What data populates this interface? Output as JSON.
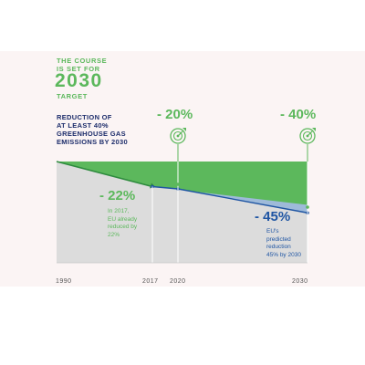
{
  "colors": {
    "green": "#5cb85c",
    "navy": "#1d2d6b",
    "blue": "#1f55a3",
    "grey_area": "#dcdcdc",
    "light_blue": "#9ebad9",
    "background": "#fbf4f4"
  },
  "headline": {
    "line1": "THE COURSE",
    "line2": "IS SET FOR",
    "year": "2030",
    "line3": "TARGET"
  },
  "reduction_heading": [
    "REDUCTION OF",
    "AT LEAST 40%",
    "GREENHOUSE GAS",
    "EMISSIONS BY 2030"
  ],
  "target_icons": [
    "target-icon",
    "target-icon"
  ],
  "chart_data": {
    "type": "area",
    "x": [
      1990,
      2017,
      2020,
      2030
    ],
    "xticks": [
      "1990",
      "2017",
      "2020",
      "2030"
    ],
    "ylabel": "",
    "ylim": [
      -60,
      0
    ],
    "grid": false,
    "series": [
      {
        "points": [
          {
            "x": 1990,
            "y": 0
          },
          {
            "x": 2017,
            "y": -22
          }
        ]
      },
      {
        "points": [
          {
            "x": 2017,
            "y": -22
          },
          {
            "x": 2020,
            "y": -24
          },
          {
            "x": 2030,
            "y": -45
          }
        ]
      }
    ],
    "targets": [
      {
        "x": 2020,
        "value": -20,
        "label": "- 20%"
      },
      {
        "x": 2030,
        "value": -40,
        "label": "- 40%"
      }
    ],
    "annotations": {
      "achieved_label": "- 22%",
      "achieved_note": "In 2017,\nEU already\nreduced by\n22%",
      "predicted_label": "- 45%",
      "predicted_note": "EU's\npredicted\nreduction\n45% by 2030"
    }
  }
}
